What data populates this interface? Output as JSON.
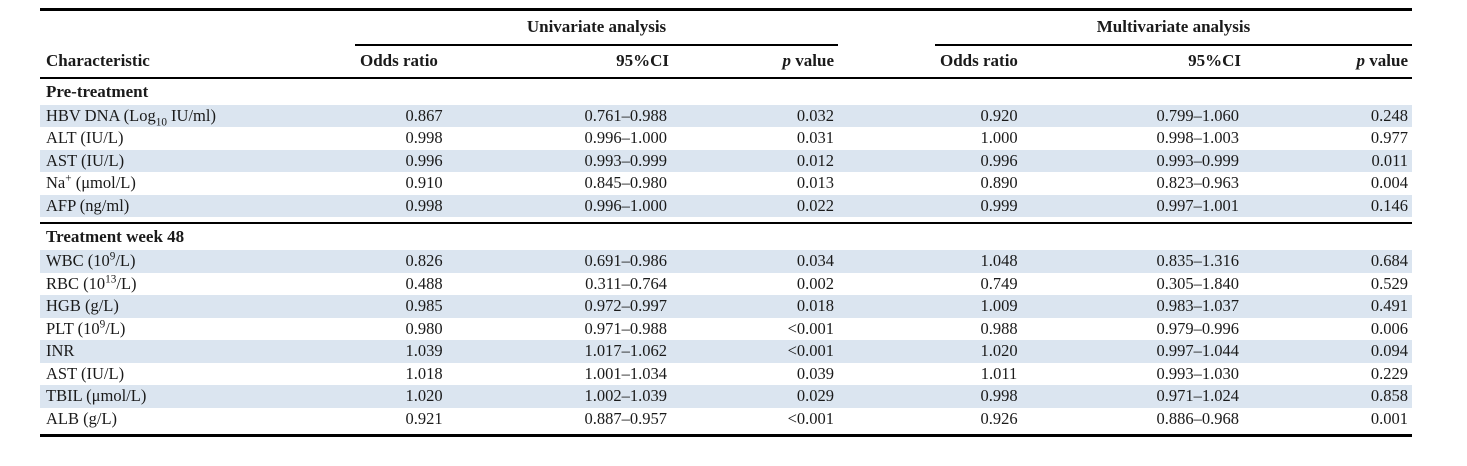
{
  "table": {
    "group_headers": [
      "Univariate analysis",
      "Multivariate analysis"
    ],
    "columns": {
      "characteristic": "Characteristic",
      "odds_ratio": "Odds ratio",
      "ci": "95%CI",
      "p_italic": "p",
      "p_rest": " value"
    },
    "colors": {
      "row_shade": "#dbe5f0",
      "rule": "#000000",
      "text": "#1a1a1a",
      "background": "#ffffff"
    },
    "sections": [
      {
        "title": "Pre-treatment",
        "rows": [
          {
            "label": [
              {
                "t": "HBV DNA (Log"
              },
              {
                "sub": "10"
              },
              {
                "t": " IU/ml)"
              }
            ],
            "uni": [
              "0.867",
              "0.761–0.988",
              "0.032"
            ],
            "multi": [
              "0.920",
              "0.799–1.060",
              "0.248"
            ]
          },
          {
            "label": [
              {
                "t": "ALT (IU/L)"
              }
            ],
            "uni": [
              "0.998",
              "0.996–1.000",
              "0.031"
            ],
            "multi": [
              "1.000",
              "0.998–1.003",
              "0.977"
            ]
          },
          {
            "label": [
              {
                "t": "AST (IU/L)"
              }
            ],
            "uni": [
              "0.996",
              "0.993–0.999",
              "0.012"
            ],
            "multi": [
              "0.996",
              "0.993–0.999",
              "0.011"
            ]
          },
          {
            "label": [
              {
                "t": "Na"
              },
              {
                "sup": "+"
              },
              {
                "t": " (μmol/L)"
              }
            ],
            "uni": [
              "0.910",
              "0.845–0.980",
              "0.013"
            ],
            "multi": [
              "0.890",
              "0.823–0.963",
              "0.004"
            ]
          },
          {
            "label": [
              {
                "t": "AFP (ng/ml)"
              }
            ],
            "uni": [
              "0.998",
              "0.996–1.000",
              "0.022"
            ],
            "multi": [
              "0.999",
              "0.997–1.001",
              "0.146"
            ]
          }
        ]
      },
      {
        "title": "Treatment week 48",
        "rows": [
          {
            "label": [
              {
                "t": "WBC (10"
              },
              {
                "sup": "9"
              },
              {
                "t": "/L)"
              }
            ],
            "uni": [
              "0.826",
              "0.691–0.986",
              "0.034"
            ],
            "multi": [
              "1.048",
              "0.835–1.316",
              "0.684"
            ]
          },
          {
            "label": [
              {
                "t": "RBC (10"
              },
              {
                "sup": "13"
              },
              {
                "t": "/L)"
              }
            ],
            "uni": [
              "0.488",
              "0.311–0.764",
              "0.002"
            ],
            "multi": [
              "0.749",
              "0.305–1.840",
              "0.529"
            ]
          },
          {
            "label": [
              {
                "t": "HGB (g/L)"
              }
            ],
            "uni": [
              "0.985",
              "0.972–0.997",
              "0.018"
            ],
            "multi": [
              "1.009",
              "0.983–1.037",
              "0.491"
            ]
          },
          {
            "label": [
              {
                "t": "PLT (10"
              },
              {
                "sup": "9"
              },
              {
                "t": "/L)"
              }
            ],
            "uni": [
              "0.980",
              "0.971–0.988",
              "<0.001"
            ],
            "multi": [
              "0.988",
              "0.979–0.996",
              "0.006"
            ]
          },
          {
            "label": [
              {
                "t": "INR"
              }
            ],
            "uni": [
              "1.039",
              "1.017–1.062",
              "<0.001"
            ],
            "multi": [
              "1.020",
              "0.997–1.044",
              "0.094"
            ]
          },
          {
            "label": [
              {
                "t": "AST (IU/L)"
              }
            ],
            "uni": [
              "1.018",
              "1.001–1.034",
              "0.039"
            ],
            "multi": [
              "1.011",
              "0.993–1.030",
              "0.229"
            ]
          },
          {
            "label": [
              {
                "t": "TBIL (μmol/L)"
              }
            ],
            "uni": [
              "1.020",
              "1.002–1.039",
              "0.029"
            ],
            "multi": [
              "0.998",
              "0.971–1.024",
              "0.858"
            ]
          },
          {
            "label": [
              {
                "t": "ALB (g/L)"
              }
            ],
            "uni": [
              "0.921",
              "0.887–0.957",
              "<0.001"
            ],
            "multi": [
              "0.926",
              "0.886–0.968",
              "0.001"
            ]
          }
        ]
      }
    ]
  }
}
